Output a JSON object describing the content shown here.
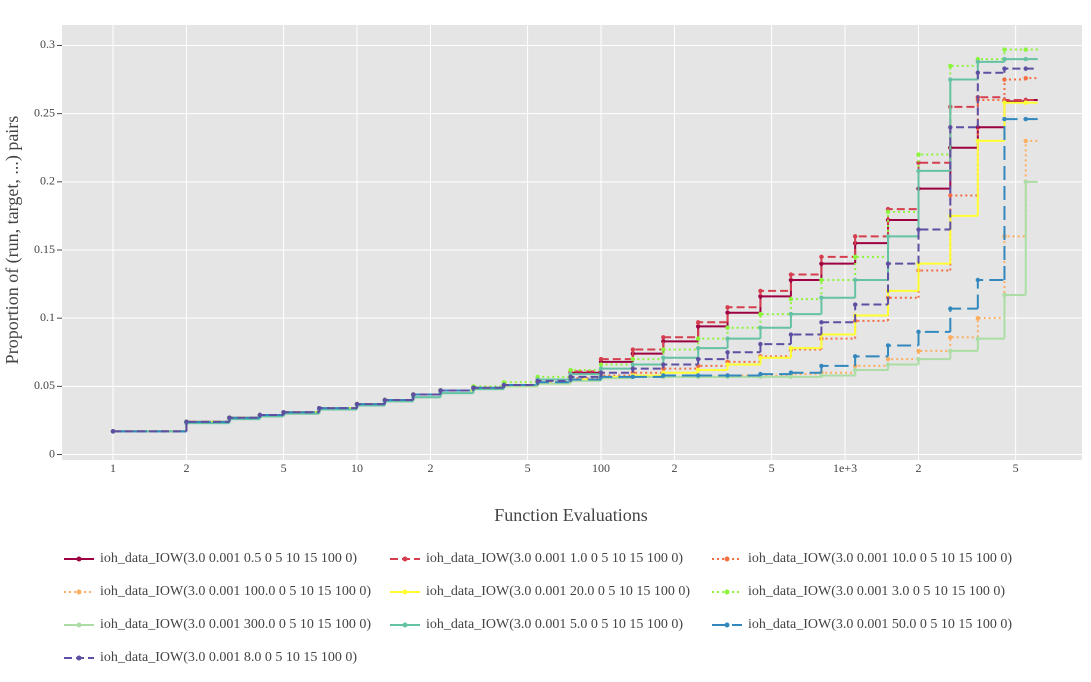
{
  "chart_data": {
    "type": "step",
    "xlabel": "Function Evaluations",
    "ylabel": "Proportion of (run, target, ...) pairs",
    "log_x": true,
    "grid": true,
    "xlim": [
      0.618,
      9354
    ],
    "ylim": [
      -0.004,
      0.315
    ],
    "xticks": [
      1,
      2,
      5,
      10,
      {
        "value": 20,
        "label": "2"
      },
      {
        "value": 50,
        "label": "5"
      },
      100,
      {
        "value": 200,
        "label": "2"
      },
      {
        "value": 500,
        "label": "5"
      },
      {
        "value": 1000,
        "label": "1e+3"
      },
      {
        "value": 2000,
        "label": "2"
      },
      {
        "value": 5000,
        "label": "5"
      }
    ],
    "yticks": [
      0,
      0.05,
      0.1,
      0.15,
      0.2,
      0.25,
      0.3
    ],
    "x": [
      1,
      2,
      3,
      4,
      5,
      7,
      10,
      13,
      17,
      22,
      30,
      40,
      55,
      75,
      100,
      135,
      180,
      250,
      330,
      450,
      600,
      800,
      1100,
      1500,
      2000,
      2700,
      3500,
      4500,
      5500
    ],
    "series": [
      {
        "name": "ioh_data_IOW(3.0 0.001 0.5 0 5 10 15 100 0)",
        "color": "#9e0142",
        "dash": "solid",
        "values": [
          0.017,
          0.024,
          0.027,
          0.029,
          0.031,
          0.034,
          0.037,
          0.04,
          0.044,
          0.047,
          0.049,
          0.051,
          0.055,
          0.06,
          0.068,
          0.074,
          0.083,
          0.094,
          0.104,
          0.116,
          0.128,
          0.14,
          0.155,
          0.172,
          0.195,
          0.225,
          0.24,
          0.259,
          0.26
        ]
      },
      {
        "name": "ioh_data_IOW(3.0 0.001 1.0 0 5 10 15 100 0)",
        "color": "#d53e4f",
        "dash": "dash",
        "values": [
          0.017,
          0.024,
          0.027,
          0.029,
          0.031,
          0.034,
          0.037,
          0.04,
          0.044,
          0.047,
          0.049,
          0.051,
          0.055,
          0.061,
          0.07,
          0.077,
          0.086,
          0.097,
          0.108,
          0.12,
          0.132,
          0.145,
          0.16,
          0.18,
          0.214,
          0.255,
          0.262,
          0.26,
          0.26
        ]
      },
      {
        "name": "ioh_data_IOW(3.0 0.001 10.0 0 5 10 15 100 0)",
        "color": "#f46d43",
        "dash": "dot",
        "values": [
          0.017,
          0.024,
          0.027,
          0.029,
          0.031,
          0.034,
          0.037,
          0.04,
          0.044,
          0.047,
          0.049,
          0.051,
          0.053,
          0.056,
          0.058,
          0.06,
          0.063,
          0.065,
          0.068,
          0.072,
          0.077,
          0.085,
          0.098,
          0.115,
          0.135,
          0.19,
          0.26,
          0.275,
          0.276
        ]
      },
      {
        "name": "ioh_data_IOW(3.0 0.001 100.0 0 5 10 15 100 0)",
        "color": "#fdae61",
        "dash": "dot",
        "values": [
          0.017,
          0.024,
          0.027,
          0.029,
          0.031,
          0.034,
          0.037,
          0.04,
          0.044,
          0.047,
          0.049,
          0.051,
          0.053,
          0.055,
          0.057,
          0.057,
          0.057,
          0.057,
          0.058,
          0.058,
          0.059,
          0.06,
          0.065,
          0.07,
          0.076,
          0.086,
          0.1,
          0.16,
          0.23
        ]
      },
      {
        "name": "ioh_data_IOW(3.0 0.001 20.0 0 5 10 15 100 0)",
        "color": "#ffff33",
        "dash": "solid",
        "values": [
          0.017,
          0.024,
          0.027,
          0.029,
          0.031,
          0.034,
          0.037,
          0.04,
          0.044,
          0.047,
          0.049,
          0.05,
          0.052,
          0.055,
          0.057,
          0.058,
          0.06,
          0.062,
          0.066,
          0.071,
          0.078,
          0.088,
          0.102,
          0.12,
          0.14,
          0.175,
          0.23,
          0.258,
          0.258
        ]
      },
      {
        "name": "ioh_data_IOW(3.0 0.001 3.0 0 5 10 15 100 0)",
        "color": "#8cf53a",
        "dash": "dot",
        "values": [
          0.017,
          0.024,
          0.027,
          0.029,
          0.031,
          0.034,
          0.037,
          0.04,
          0.044,
          0.047,
          0.05,
          0.053,
          0.057,
          0.062,
          0.066,
          0.07,
          0.077,
          0.085,
          0.093,
          0.103,
          0.114,
          0.128,
          0.145,
          0.178,
          0.22,
          0.285,
          0.29,
          0.297,
          0.297
        ]
      },
      {
        "name": "ioh_data_IOW(3.0 0.001 300.0 0 5 10 15 100 0)",
        "color": "#abdda4",
        "dash": "solid",
        "values": [
          0.017,
          0.023,
          0.026,
          0.028,
          0.03,
          0.033,
          0.036,
          0.039,
          0.042,
          0.045,
          0.048,
          0.05,
          0.052,
          0.054,
          0.056,
          0.057,
          0.057,
          0.057,
          0.057,
          0.057,
          0.057,
          0.058,
          0.062,
          0.066,
          0.07,
          0.076,
          0.085,
          0.117,
          0.2
        ]
      },
      {
        "name": "ioh_data_IOW(3.0 0.001 5.0 0 5 10 15 100 0)",
        "color": "#66c2a5",
        "dash": "solid",
        "values": [
          0.017,
          0.023,
          0.026,
          0.028,
          0.03,
          0.033,
          0.036,
          0.039,
          0.042,
          0.045,
          0.048,
          0.051,
          0.055,
          0.059,
          0.063,
          0.066,
          0.071,
          0.078,
          0.085,
          0.093,
          0.103,
          0.115,
          0.128,
          0.16,
          0.208,
          0.275,
          0.288,
          0.29,
          0.29
        ]
      },
      {
        "name": "ioh_data_IOW(3.0 0.001 50.0 0 5 10 15 100 0)",
        "color": "#3288bd",
        "dash": "longdash",
        "values": [
          0.017,
          0.024,
          0.027,
          0.029,
          0.031,
          0.034,
          0.037,
          0.04,
          0.044,
          0.047,
          0.049,
          0.051,
          0.053,
          0.055,
          0.057,
          0.057,
          0.058,
          0.058,
          0.058,
          0.059,
          0.06,
          0.065,
          0.072,
          0.08,
          0.09,
          0.107,
          0.128,
          0.246,
          0.246
        ]
      },
      {
        "name": "ioh_data_IOW(3.0 0.001 8.0 0 5 10 15 100 0)",
        "color": "#5e4fa2",
        "dash": "dash",
        "values": [
          0.017,
          0.024,
          0.027,
          0.029,
          0.031,
          0.034,
          0.037,
          0.04,
          0.044,
          0.047,
          0.049,
          0.051,
          0.054,
          0.057,
          0.06,
          0.063,
          0.066,
          0.07,
          0.075,
          0.081,
          0.088,
          0.097,
          0.11,
          0.14,
          0.165,
          0.24,
          0.28,
          0.283,
          0.283
        ]
      }
    ]
  }
}
